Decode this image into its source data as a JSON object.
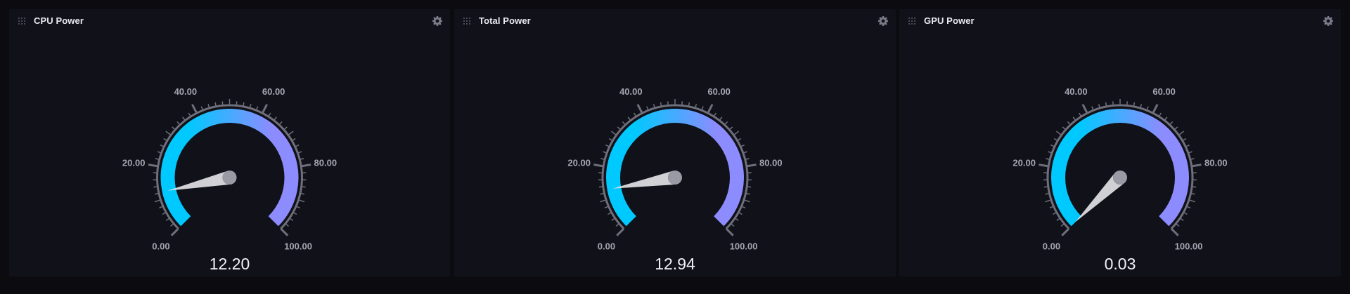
{
  "dashboard": {
    "background": "#0b0b10",
    "panel_background": "#111119"
  },
  "panels": [
    {
      "title": "CPU Power",
      "value": 12.2,
      "value_label": "12.20",
      "min": 0,
      "max": 100,
      "tick_labels": [
        "0.00",
        "20.00",
        "40.00",
        "60.00",
        "80.00",
        "100.00"
      ],
      "drag_icon": "grip-dots-icon",
      "settings_icon": "gear-icon"
    },
    {
      "title": "Total Power",
      "value": 12.94,
      "value_label": "12.94",
      "min": 0,
      "max": 100,
      "tick_labels": [
        "0.00",
        "20.00",
        "40.00",
        "60.00",
        "80.00",
        "100.00"
      ],
      "drag_icon": "grip-dots-icon",
      "settings_icon": "gear-icon"
    },
    {
      "title": "GPU Power",
      "value": 0.03,
      "value_label": "0.03",
      "min": 0,
      "max": 100,
      "tick_labels": [
        "0.00",
        "20.00",
        "40.00",
        "60.00",
        "80.00",
        "100.00"
      ],
      "drag_icon": "grip-dots-icon",
      "settings_icon": "gear-icon"
    }
  ],
  "gauge_colors": {
    "gradient_start": "#00c9ff",
    "gradient_end": "#8c8cff",
    "ticks": "#6f6f7c",
    "tick_labels": "#a5a5b2",
    "value_text": "#f2f2f6",
    "needle": "#e6e6ea"
  }
}
